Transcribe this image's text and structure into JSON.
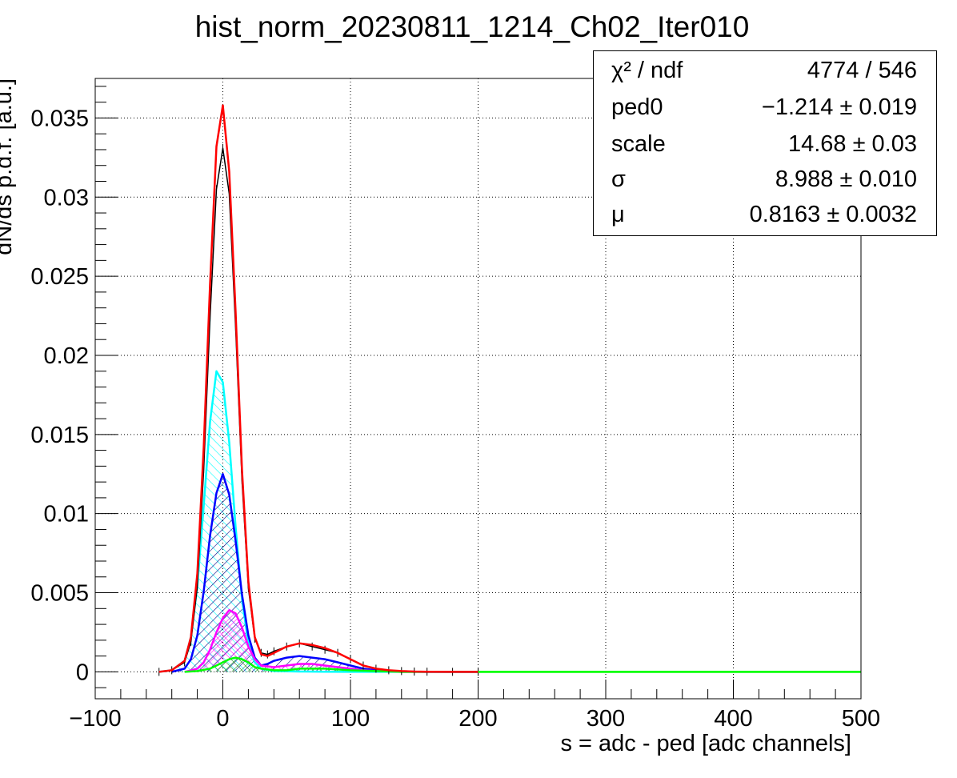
{
  "chart_data": {
    "type": "line",
    "title": "hist_norm_20230811_1214_Ch02_Iter010",
    "xlabel": "s = adc - ped [adc channels]",
    "ylabel": "dN/ds p.d.f. [a.u.]",
    "xlim": [
      -100,
      500
    ],
    "ylim": [
      -0.0017,
      0.0375
    ],
    "x_ticks": [
      -100,
      0,
      100,
      200,
      300,
      400,
      500
    ],
    "x_tick_labels": [
      "−100",
      "0",
      "100",
      "200",
      "300",
      "400",
      "500"
    ],
    "y_ticks": [
      0,
      0.005,
      0.01,
      0.015,
      0.02,
      0.025,
      0.03,
      0.035
    ],
    "y_tick_labels": [
      "0",
      "0.005",
      "0.01",
      "0.015",
      "0.02",
      "0.025",
      "0.03",
      "0.035"
    ],
    "grid": true,
    "series": [
      {
        "role": "data",
        "color": "#000000",
        "x": [
          -50,
          -40,
          -30,
          -25,
          -20,
          -15,
          -10,
          -5,
          0,
          5,
          10,
          15,
          20,
          25,
          30,
          35,
          40,
          50,
          60,
          70,
          80,
          90,
          100,
          110,
          120,
          130,
          140,
          150,
          160,
          180,
          200
        ],
        "y": [
          0,
          0.0001,
          0.0006,
          0.0019,
          0.0054,
          0.0128,
          0.0224,
          0.0305,
          0.0331,
          0.0302,
          0.0218,
          0.0121,
          0.0053,
          0.0021,
          0.0012,
          0.0011,
          0.0013,
          0.0016,
          0.0018,
          0.0016,
          0.0014,
          0.0012,
          0.0008,
          0.0004,
          0.0002,
          0.0001,
          5e-05,
          2e-05,
          1e-05,
          0,
          0
        ]
      },
      {
        "role": "fit-total",
        "color": "#ff0000",
        "x": [
          -50,
          -40,
          -30,
          -25,
          -20,
          -15,
          -10,
          -5,
          0,
          5,
          10,
          15,
          20,
          25,
          30,
          35,
          40,
          50,
          60,
          70,
          80,
          90,
          100,
          110,
          120,
          130,
          140,
          150,
          160,
          180,
          200
        ],
        "y": [
          0,
          0.0001,
          0.0007,
          0.0022,
          0.0062,
          0.0142,
          0.0245,
          0.0332,
          0.0358,
          0.0316,
          0.0228,
          0.0128,
          0.0057,
          0.0022,
          0.0011,
          0.001,
          0.0012,
          0.0016,
          0.0018,
          0.0017,
          0.0015,
          0.0012,
          0.0008,
          0.0004,
          0.0002,
          0.0001,
          5e-05,
          2e-05,
          1e-05,
          0,
          0
        ]
      },
      {
        "role": "component",
        "color": "#00ffff",
        "hatched": true,
        "x": [
          -50,
          -40,
          -30,
          -25,
          -20,
          -15,
          -10,
          -5,
          0,
          5,
          10,
          15,
          20,
          25,
          30,
          40,
          60,
          80,
          100,
          120,
          140,
          160,
          200
        ],
        "y": [
          0,
          0.0001,
          0.0007,
          0.0022,
          0.0054,
          0.0105,
          0.0158,
          0.019,
          0.0183,
          0.0145,
          0.0092,
          0.0046,
          0.0018,
          0.0006,
          0.0002,
          5e-05,
          2e-05,
          1e-05,
          0,
          0,
          0,
          0,
          0
        ]
      },
      {
        "role": "component",
        "color": "#0000ff",
        "hatched": true,
        "x": [
          -40,
          -30,
          -25,
          -20,
          -15,
          -10,
          -5,
          0,
          5,
          10,
          15,
          20,
          25,
          30,
          35,
          40,
          50,
          60,
          70,
          80,
          90,
          100,
          110,
          120,
          130,
          140,
          160,
          200
        ],
        "y": [
          0,
          0.0002,
          0.0008,
          0.0023,
          0.0051,
          0.0086,
          0.0113,
          0.0125,
          0.0112,
          0.0083,
          0.0049,
          0.0023,
          0.0009,
          0.0004,
          0.0005,
          0.0007,
          0.0009,
          0.001,
          0.0009,
          0.0008,
          0.0006,
          0.0004,
          0.0002,
          0.0001,
          5e-05,
          2e-05,
          0,
          0
        ]
      },
      {
        "role": "component",
        "color": "#ff00ff",
        "hatched": true,
        "x": [
          -30,
          -20,
          -15,
          -10,
          -5,
          0,
          5,
          10,
          15,
          20,
          25,
          30,
          40,
          50,
          60,
          70,
          80,
          90,
          100,
          110,
          120,
          140,
          160,
          200
        ],
        "y": [
          0,
          0.0002,
          0.0006,
          0.0014,
          0.0025,
          0.0034,
          0.0039,
          0.0037,
          0.0028,
          0.0016,
          0.0008,
          0.0004,
          0.0003,
          0.0004,
          0.0005,
          0.0005,
          0.0004,
          0.0003,
          0.0002,
          0.0001,
          5e-05,
          0,
          0,
          0
        ]
      },
      {
        "role": "component",
        "color": "#00ff00",
        "hatched": true,
        "x": [
          -30,
          -20,
          -10,
          -5,
          0,
          5,
          10,
          15,
          20,
          25,
          30,
          40,
          50,
          60,
          70,
          80,
          90,
          100,
          120,
          140,
          200,
          300,
          400,
          500
        ],
        "y": [
          0,
          5e-05,
          0.0002,
          0.0004,
          0.0006,
          0.0008,
          0.0009,
          0.0008,
          0.0006,
          0.0003,
          0.0002,
          0.0001,
          0.0001,
          0.0002,
          0.0002,
          0.0002,
          0.00015,
          0.0001,
          5e-05,
          0,
          0,
          0,
          0,
          0
        ]
      }
    ]
  },
  "stats": [
    {
      "name": "χ² / ndf",
      "value": "4774 / 546"
    },
    {
      "name": "ped0",
      "value": "−1.214 ± 0.019"
    },
    {
      "name": "scale",
      "value": "14.68 ± 0.03"
    },
    {
      "name": "σ",
      "value": "8.988 ± 0.010"
    },
    {
      "name": "μ",
      "value": "0.8163 ± 0.0032"
    }
  ]
}
